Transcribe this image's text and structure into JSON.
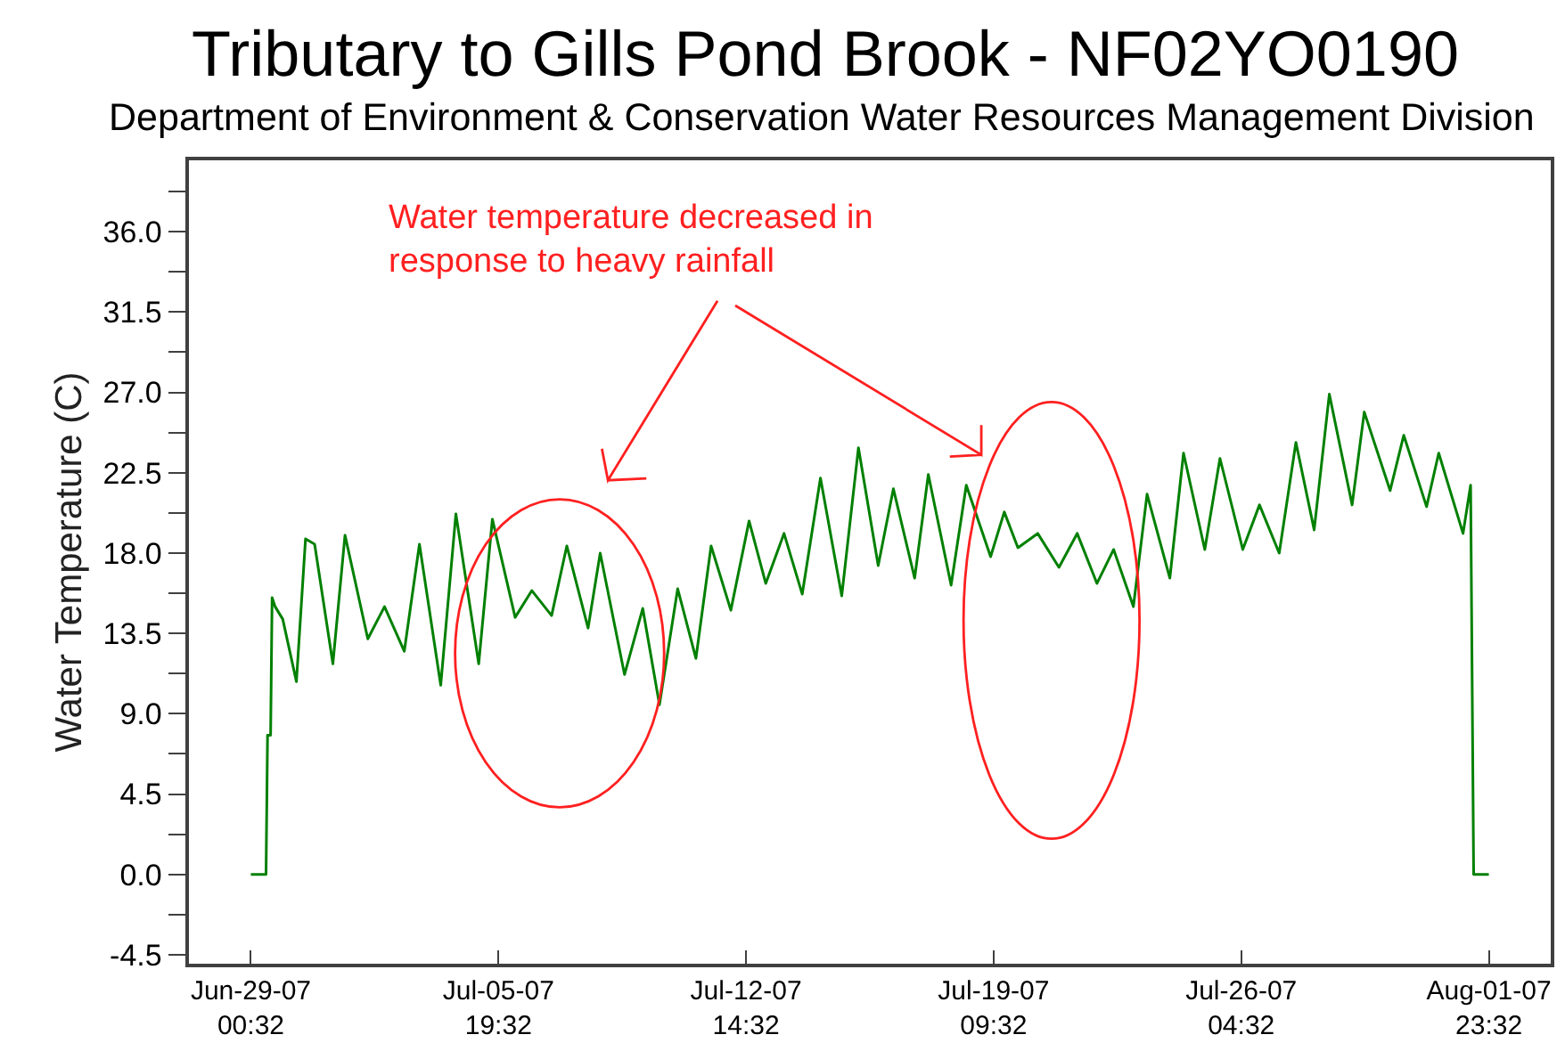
{
  "chart_data": {
    "type": "line",
    "title": "Tributary to Gills Pond Brook - NF02YO0190",
    "subtitle": "Department of Environment & Conservation Water Resources Management Division",
    "ylabel": "Water Temperature (C)",
    "annotations": [
      "Water temperature decreased in\nresponse to heavy rainfall"
    ],
    "x": [
      "--06-29T00:32",
      "--06-29T10:32",
      "--06-29T11:32",
      "--06-29T13:32",
      "--06-29T14:32",
      "--06-29T16:32",
      "--06-29T21:32",
      "--06-30T06:32",
      "--06-30T12:32",
      "--06-30T18:32",
      "--07-01T06:32",
      "--07-01T14:32",
      "--07-02T05:32",
      "--07-02T16:32",
      "--07-03T05:32",
      "--07-03T15:32",
      "--07-04T05:32",
      "--07-04T15:32",
      "--07-05T06:32",
      "--07-05T15:32",
      "--07-06T06:32",
      "--07-06T17:32",
      "--07-07T06:32",
      "--07-07T16:32",
      "--07-08T06:32",
      "--07-08T14:32",
      "--07-09T06:32",
      "--07-09T18:32",
      "--07-10T05:32",
      "--07-10T17:32",
      "--07-11T05:32",
      "--07-11T15:32",
      "--07-12T04:32",
      "--07-12T16:32",
      "--07-13T03:32",
      "--07-13T15:32",
      "--07-14T03:32",
      "--07-14T15:32",
      "--07-15T05:32",
      "--07-15T16:32",
      "--07-16T05:32",
      "--07-16T15:32",
      "--07-17T05:32",
      "--07-17T14:32",
      "--07-18T05:32",
      "--07-18T15:32",
      "--07-19T07:32",
      "--07-19T16:32",
      "--07-20T01:32",
      "--07-20T14:32",
      "--07-21T04:32",
      "--07-21T16:32",
      "--07-22T05:32",
      "--07-22T16:32",
      "--07-23T05:32",
      "--07-23T14:32",
      "--07-24T05:32",
      "--07-24T14:32",
      "--07-25T04:32",
      "--07-25T14:32",
      "--07-26T05:32",
      "--07-26T16:32",
      "--07-27T05:32",
      "--07-27T16:32",
      "--07-28T04:32",
      "--07-28T14:32",
      "--07-29T05:32",
      "--07-29T13:32",
      "--07-30T06:32",
      "--07-30T15:32",
      "--07-31T06:32",
      "--07-31T14:32",
      "--08-01T06:32",
      "--08-01T11:32",
      "--08-01T13:32",
      "--08-01T23:32"
    ],
    "series": [
      {
        "color": "#008000",
        "values": [
          0,
          0,
          7.8,
          7.8,
          15.5,
          15.0,
          14.3,
          10.8,
          18.8,
          18.5,
          11.8,
          19.0,
          13.2,
          15.0,
          12.5,
          18.5,
          10.6,
          20.2,
          11.8,
          19.9,
          14.4,
          15.9,
          14.5,
          18.4,
          13.8,
          18.0,
          11.2,
          14.9,
          9.5,
          16.0,
          12.1,
          18.4,
          14.8,
          19.8,
          16.3,
          19.1,
          15.7,
          22.2,
          15.6,
          23.9,
          17.3,
          21.6,
          16.6,
          22.4,
          16.2,
          21.8,
          17.8,
          20.3,
          18.3,
          19.1,
          17.2,
          19.1,
          16.3,
          18.2,
          15.0,
          21.3,
          16.6,
          23.6,
          18.2,
          23.3,
          18.2,
          20.7,
          18.0,
          24.2,
          19.3,
          26.9,
          20.7,
          25.9,
          21.5,
          24.6,
          20.6,
          23.6,
          19.1,
          21.8,
          0,
          0
        ]
      }
    ],
    "xlim": [
      "--06-27T07:47",
      "--08-03T16:17"
    ],
    "xticks": [
      {
        "value": "--06-29T00:32",
        "label": "Jun-29-07\n00:32"
      },
      {
        "value": "--07-05T19:32",
        "label": "Jul-05-07\n19:32"
      },
      {
        "value": "--07-12T14:32",
        "label": "Jul-12-07\n14:32"
      },
      {
        "value": "--07-19T09:32",
        "label": "Jul-19-07\n09:32"
      },
      {
        "value": "--07-26T04:32",
        "label": "Jul-26-07\n04:32"
      },
      {
        "value": "--08-01T23:32",
        "label": "Aug-01-07\n23:32"
      }
    ],
    "ylim": [
      -5,
      40
    ],
    "yticks": [
      -4.5,
      {
        "value": -2.25,
        "label": null
      },
      {
        "value": 0,
        "label": "0.0"
      },
      {
        "value": 2.25,
        "label": null
      },
      4.5,
      {
        "value": 6.75,
        "label": null
      },
      {
        "value": 9,
        "label": "9.0"
      },
      {
        "value": 11.25,
        "label": null
      },
      13.5,
      {
        "value": 15.75,
        "label": null
      },
      {
        "value": 18,
        "label": "18.0"
      },
      {
        "value": 20.25,
        "label": null
      },
      22.5,
      {
        "value": 24.75,
        "label": null
      },
      {
        "value": 27,
        "label": "27.0"
      },
      {
        "value": 29.25,
        "label": null
      },
      31.5,
      {
        "value": 33.75,
        "label": null
      },
      {
        "value": 36,
        "label": "36.0"
      },
      {
        "value": 38.25,
        "label": null
      }
    ]
  }
}
